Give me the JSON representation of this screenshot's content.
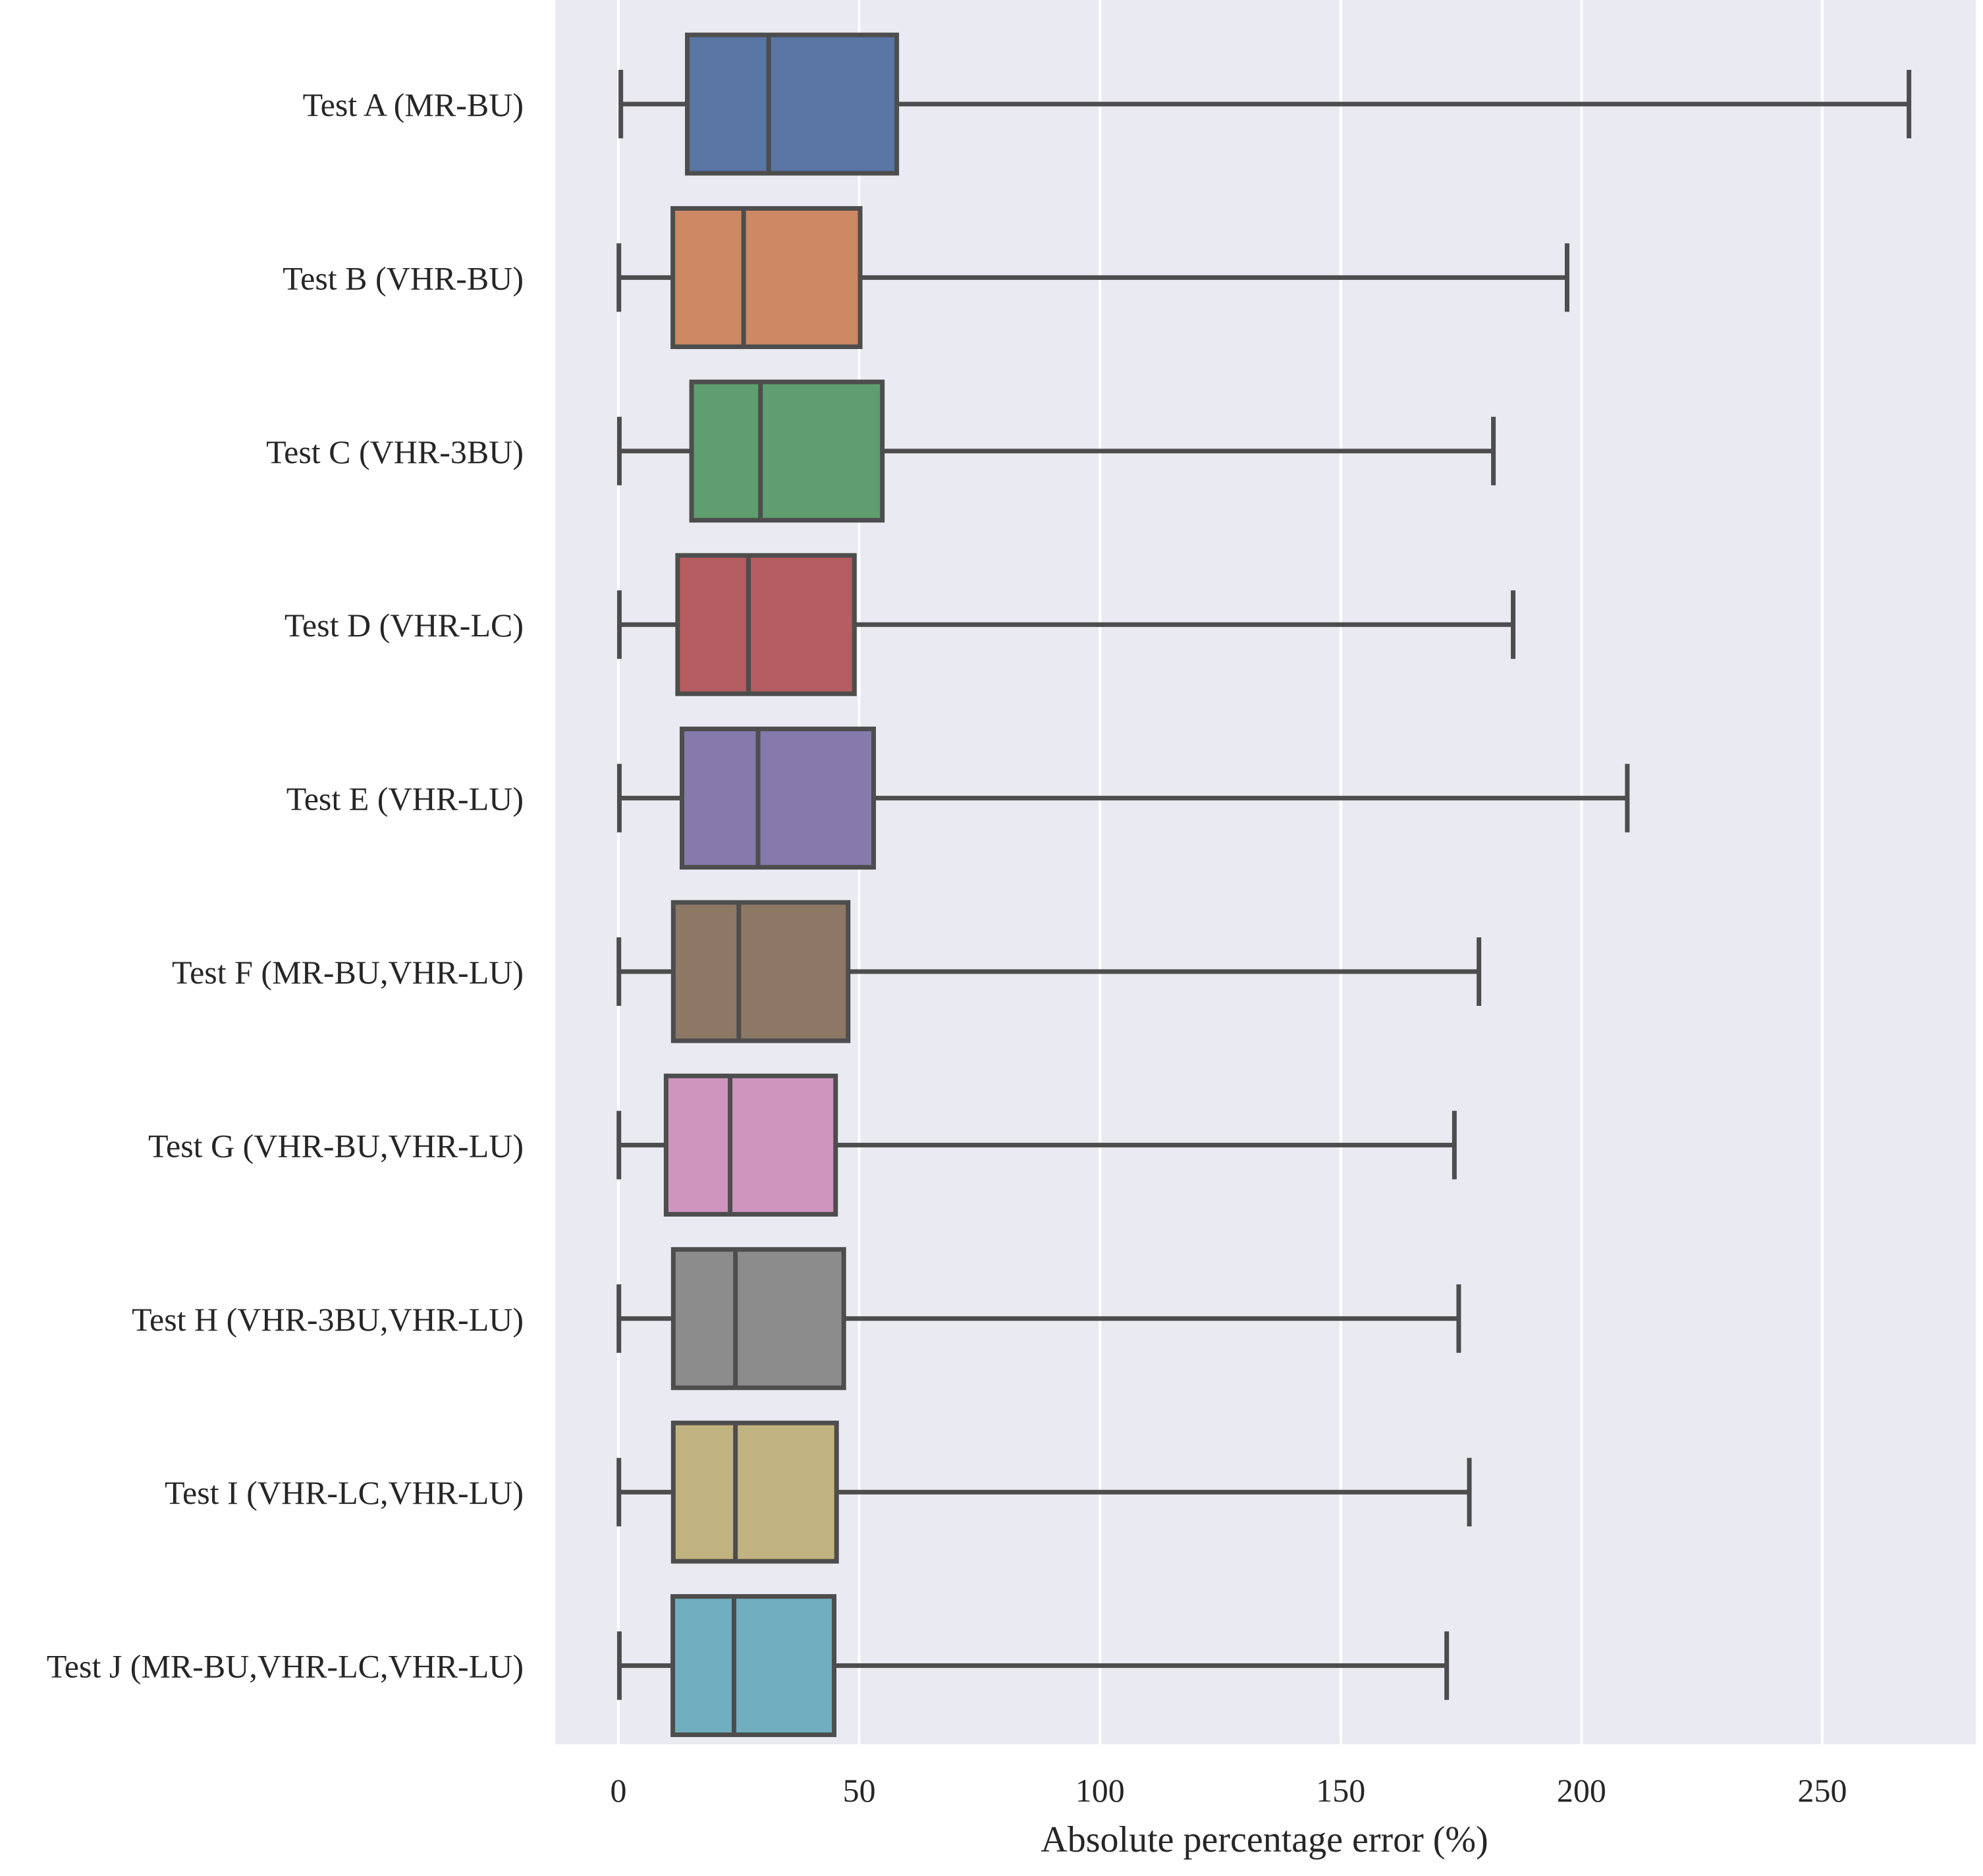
{
  "chart_data": {
    "type": "box",
    "orientation": "horizontal",
    "title": "",
    "xlabel": "Absolute percentage error (%)",
    "ylabel": "",
    "xlim": [
      -13,
      283
    ],
    "xticks": [
      0,
      50,
      100,
      150,
      200,
      250
    ],
    "grid": "vertical",
    "background_color": "#eaeaf2",
    "grid_color": "#ffffff",
    "line_color": "#4d4d4d",
    "categories": [
      "Test A (MR-BU)",
      "Test B (VHR-BU)",
      "Test C (VHR-3BU)",
      "Test D (VHR-LC)",
      "Test E (VHR-LU)",
      "Test F (MR-BU,VHR-LU)",
      "Test G (VHR-BU,VHR-LU)",
      "Test H (VHR-3BU,VHR-LU)",
      "Test I (VHR-LC,VHR-LU)",
      "Test J (MR-BU,VHR-LC,VHR-LU)"
    ],
    "boxes": [
      {
        "whisker_low": 0.5,
        "q1": 14.3,
        "median": 31.2,
        "q3": 57.8,
        "whisker_high": 268.0,
        "color": "#5875a4"
      },
      {
        "whisker_low": 0.1,
        "q1": 11.3,
        "median": 26.0,
        "q3": 50.2,
        "whisker_high": 197.0,
        "color": "#cc8963"
      },
      {
        "whisker_low": 0.2,
        "q1": 15.2,
        "median": 29.5,
        "q3": 54.8,
        "whisker_high": 181.7,
        "color": "#5f9e6e"
      },
      {
        "whisker_low": 0.2,
        "q1": 12.3,
        "median": 27.0,
        "q3": 49.0,
        "whisker_high": 185.8,
        "color": "#b55d60"
      },
      {
        "whisker_low": 0.2,
        "q1": 13.2,
        "median": 29.0,
        "q3": 53.0,
        "whisker_high": 209.5,
        "color": "#857aab"
      },
      {
        "whisker_low": 0.1,
        "q1": 11.4,
        "median": 25.0,
        "q3": 47.7,
        "whisker_high": 178.7,
        "color": "#8d7866"
      },
      {
        "whisker_low": 0.1,
        "q1": 9.9,
        "median": 23.2,
        "q3": 45.1,
        "whisker_high": 173.6,
        "color": "#d095bf"
      },
      {
        "whisker_low": 0.1,
        "q1": 11.4,
        "median": 24.3,
        "q3": 46.8,
        "whisker_high": 174.5,
        "color": "#8c8c8c"
      },
      {
        "whisker_low": 0.1,
        "q1": 11.4,
        "median": 24.3,
        "q3": 45.3,
        "whisker_high": 176.7,
        "color": "#c1b37f"
      },
      {
        "whisker_low": 0.2,
        "q1": 11.3,
        "median": 24.0,
        "q3": 44.8,
        "whisker_high": 172.0,
        "color": "#71aec0"
      }
    ]
  }
}
